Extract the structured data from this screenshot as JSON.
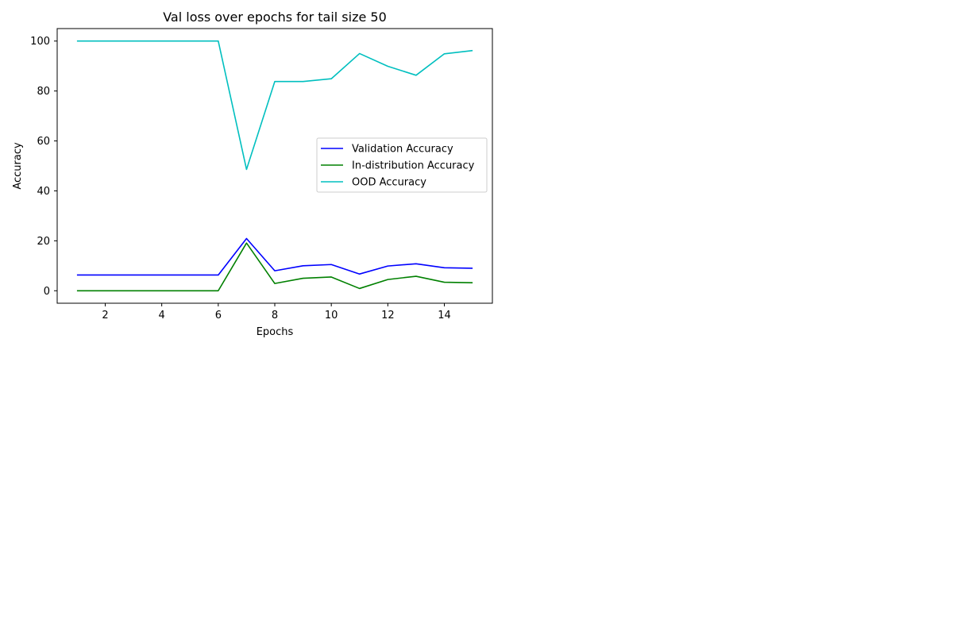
{
  "chart_data": {
    "type": "line",
    "title": "Val loss over epochs for tail size 50",
    "xlabel": "Epochs",
    "ylabel": "Accuracy",
    "xlim": [
      0.3,
      15.7
    ],
    "ylim": [
      -5,
      105
    ],
    "xticks": [
      2,
      4,
      6,
      8,
      10,
      12,
      14
    ],
    "yticks": [
      0,
      20,
      40,
      60,
      80,
      100
    ],
    "x": [
      1,
      2,
      3,
      4,
      5,
      6,
      7,
      8,
      9,
      10,
      11,
      12,
      13,
      14,
      15
    ],
    "grid": false,
    "legend_position": "center-right",
    "series": [
      {
        "name": "Validation Accuracy",
        "color": "#0000ff",
        "values": [
          6.3,
          6.3,
          6.3,
          6.3,
          6.3,
          6.3,
          20.9,
          8.0,
          10.0,
          10.5,
          6.7,
          9.9,
          10.8,
          9.2,
          9.0
        ]
      },
      {
        "name": "In-distribution Accuracy",
        "color": "#008000",
        "values": [
          0.0,
          0.0,
          0.0,
          0.0,
          0.0,
          0.0,
          19.1,
          2.9,
          5.0,
          5.5,
          0.9,
          4.5,
          5.8,
          3.4,
          3.2
        ]
      },
      {
        "name": "OOD Accuracy",
        "color": "#00bfbf",
        "values": [
          100.0,
          100.0,
          100.0,
          100.0,
          100.0,
          100.0,
          48.6,
          83.8,
          83.8,
          84.9,
          95.0,
          89.9,
          86.3,
          94.9,
          96.2
        ]
      }
    ]
  }
}
